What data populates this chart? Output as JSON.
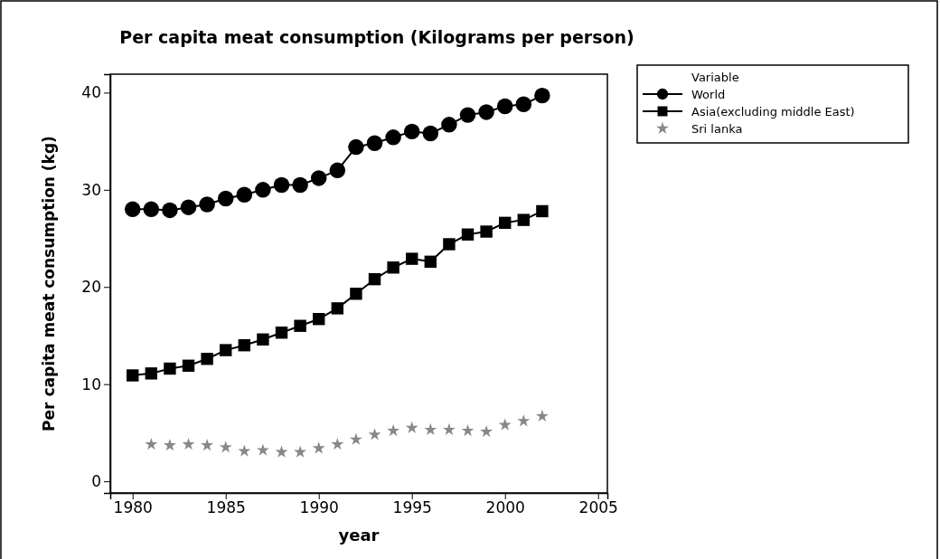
{
  "chart_data": {
    "type": "line",
    "title": "Per capita meat consumption (Kilograms per person)",
    "xlabel": "year",
    "ylabel": "Per capita meat consumption (kg)",
    "legend_title": "Variable",
    "x": [
      1980,
      1981,
      1982,
      1983,
      1984,
      1985,
      1986,
      1987,
      1988,
      1989,
      1990,
      1991,
      1992,
      1993,
      1994,
      1995,
      1996,
      1997,
      1998,
      1999,
      2000,
      2001,
      2002
    ],
    "series": [
      {
        "name": "World",
        "color": "#000000",
        "marker": "circle",
        "values": [
          28.0,
          28.0,
          27.9,
          28.2,
          28.5,
          29.1,
          29.5,
          30.0,
          30.5,
          30.5,
          31.2,
          32.0,
          34.4,
          34.8,
          35.4,
          36.0,
          35.8,
          36.7,
          37.7,
          38.0,
          38.6,
          38.8,
          39.7
        ]
      },
      {
        "name": "Asia(excluding middle East)",
        "color": "#000000",
        "marker": "square",
        "values": [
          10.9,
          11.1,
          11.6,
          11.9,
          12.6,
          13.5,
          14.0,
          14.6,
          15.3,
          16.0,
          16.7,
          17.8,
          19.3,
          20.8,
          22.0,
          22.9,
          22.6,
          24.4,
          25.4,
          25.7,
          26.6,
          26.9,
          27.8
        ]
      },
      {
        "name": "Sri lanka",
        "color": "#888888",
        "type": "scatter",
        "marker": "star",
        "values": [
          null,
          3.8,
          3.7,
          3.8,
          3.7,
          3.5,
          3.1,
          3.2,
          3.0,
          3.0,
          3.4,
          3.8,
          4.3,
          4.8,
          5.2,
          5.5,
          5.3,
          5.3,
          5.2,
          5.1,
          5.8,
          6.2,
          6.7
        ]
      }
    ],
    "xlim": [
      1978.8,
      2005.5
    ],
    "xticks": [
      1980,
      1985,
      1990,
      1995,
      2000,
      2005
    ],
    "ylim": [
      -1.2,
      41.9
    ],
    "yticks": [
      0,
      10,
      20,
      30,
      40
    ],
    "grid": false,
    "legend": "top right",
    "line_style": "solid"
  }
}
